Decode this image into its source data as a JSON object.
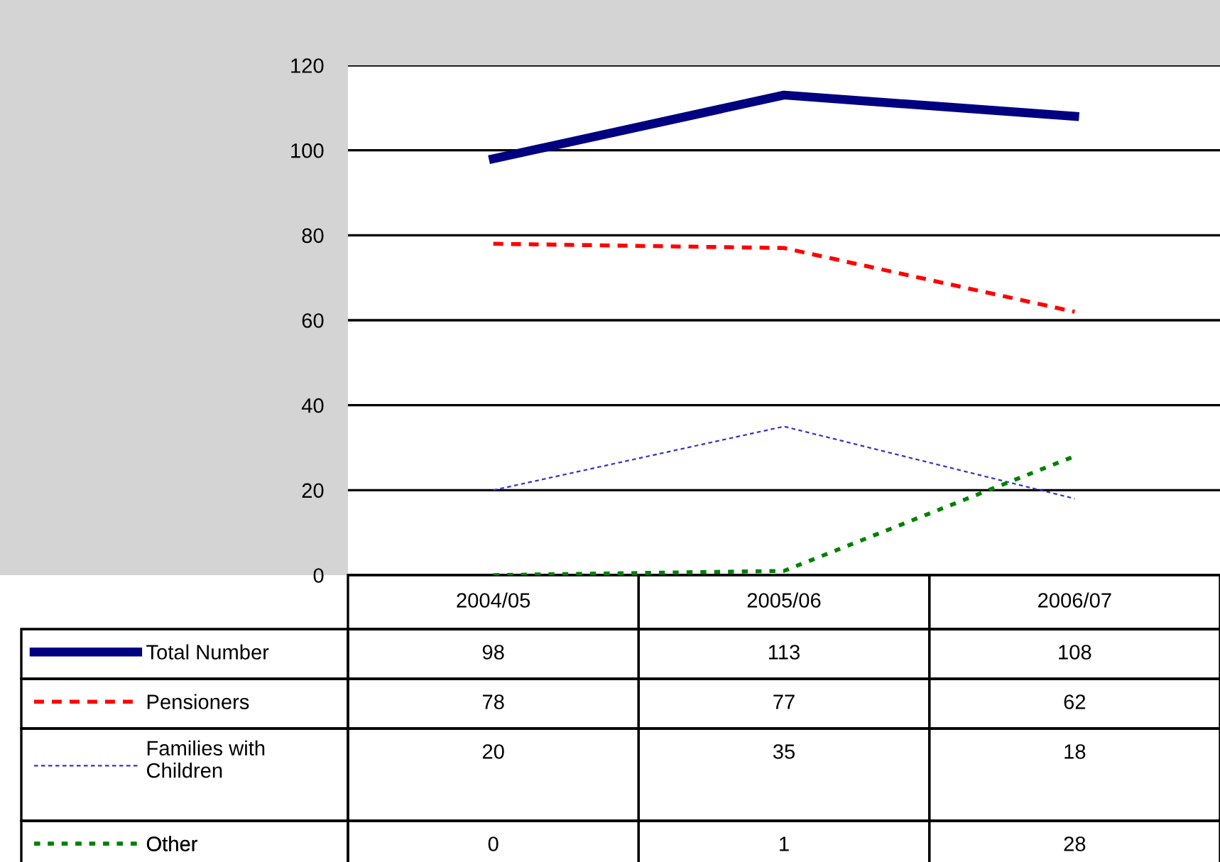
{
  "chart_data": {
    "type": "line",
    "categories": [
      "2004/05",
      "2005/06",
      "2006/07"
    ],
    "series": [
      {
        "name": "Total Number",
        "color": "#000080",
        "line_style": "solid",
        "values": [
          98,
          113,
          108
        ]
      },
      {
        "name": "Pensioners",
        "color": "#ff0000",
        "line_style": "dashed",
        "values": [
          78,
          77,
          62
        ]
      },
      {
        "name": "Families with Children",
        "color": "#3333cc",
        "line_style": "dashed",
        "values": [
          20,
          35,
          18
        ]
      },
      {
        "name": "Other",
        "color": "#008000",
        "line_style": "dotted",
        "values": [
          0,
          1,
          28
        ]
      }
    ],
    "legend": "bottom",
    "ylim": [
      0,
      120
    ],
    "yticks": [
      0,
      20,
      40,
      60,
      80,
      100,
      120
    ],
    "grid": "y",
    "data_labels": true
  }
}
